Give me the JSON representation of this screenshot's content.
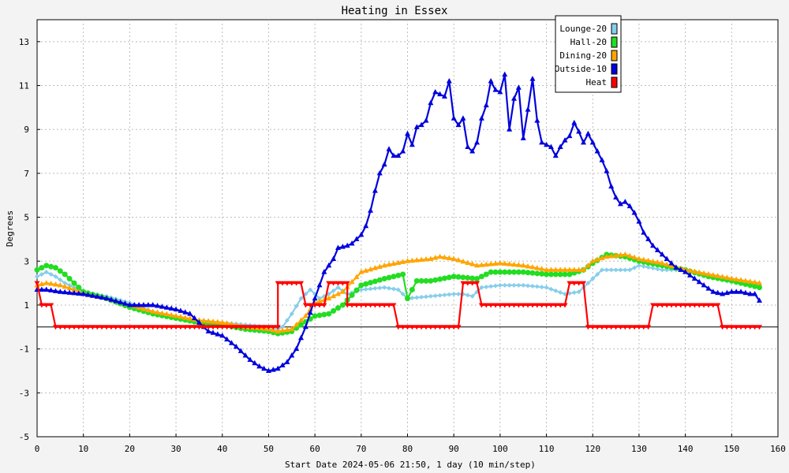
{
  "chart_data": {
    "type": "line",
    "title": "Heating in Essex",
    "xlabel": "Start Date 2024-05-06 21:50, 1 day (10 min/step)",
    "ylabel": "Degrees",
    "xlim": [
      0,
      160
    ],
    "ylim": [
      -5,
      14
    ],
    "xticks": [
      0,
      10,
      20,
      30,
      40,
      50,
      60,
      70,
      80,
      90,
      100,
      110,
      120,
      130,
      140,
      150,
      160
    ],
    "yticks": [
      -5,
      -3,
      -1,
      1,
      3,
      5,
      7,
      9,
      11,
      13
    ],
    "grid": true,
    "legend_position": "top-right",
    "series": [
      {
        "name": "Lounge-20",
        "color": "#87ceeb",
        "marker": "diamond",
        "points": [
          [
            0,
            2.3
          ],
          [
            2,
            2.5
          ],
          [
            4,
            2.3
          ],
          [
            6,
            2.0
          ],
          [
            8,
            1.8
          ],
          [
            10,
            1.6
          ],
          [
            15,
            1.4
          ],
          [
            20,
            1.1
          ],
          [
            25,
            0.7
          ],
          [
            30,
            0.4
          ],
          [
            35,
            0.3
          ],
          [
            40,
            0.2
          ],
          [
            45,
            0.1
          ],
          [
            50,
            0.0
          ],
          [
            52,
            -0.1
          ],
          [
            53,
            0.0
          ],
          [
            55,
            0.6
          ],
          [
            57,
            1.3
          ],
          [
            59,
            1.7
          ],
          [
            61,
            1.3
          ],
          [
            63,
            1.5
          ],
          [
            65,
            1.8
          ],
          [
            67,
            1.5
          ],
          [
            70,
            1.7
          ],
          [
            75,
            1.8
          ],
          [
            78,
            1.7
          ],
          [
            80,
            1.3
          ],
          [
            85,
            1.4
          ],
          [
            90,
            1.5
          ],
          [
            92,
            1.5
          ],
          [
            94,
            1.4
          ],
          [
            96,
            1.8
          ],
          [
            100,
            1.9
          ],
          [
            105,
            1.9
          ],
          [
            110,
            1.8
          ],
          [
            114,
            1.5
          ],
          [
            117,
            1.6
          ],
          [
            120,
            2.2
          ],
          [
            122,
            2.6
          ],
          [
            125,
            2.6
          ],
          [
            128,
            2.6
          ],
          [
            130,
            2.8
          ],
          [
            135,
            2.6
          ],
          [
            140,
            2.6
          ],
          [
            145,
            2.4
          ],
          [
            150,
            2.2
          ],
          [
            156,
            1.9
          ]
        ]
      },
      {
        "name": "Hall-20",
        "color": "#22dd22",
        "marker": "circle",
        "points": [
          [
            0,
            2.6
          ],
          [
            2,
            2.8
          ],
          [
            4,
            2.7
          ],
          [
            6,
            2.4
          ],
          [
            8,
            2.0
          ],
          [
            10,
            1.6
          ],
          [
            15,
            1.3
          ],
          [
            20,
            0.9
          ],
          [
            25,
            0.6
          ],
          [
            30,
            0.4
          ],
          [
            35,
            0.2
          ],
          [
            40,
            0.1
          ],
          [
            45,
            -0.1
          ],
          [
            50,
            -0.2
          ],
          [
            52,
            -0.3
          ],
          [
            55,
            -0.2
          ],
          [
            57,
            0.1
          ],
          [
            60,
            0.5
          ],
          [
            63,
            0.6
          ],
          [
            66,
            1.0
          ],
          [
            70,
            1.9
          ],
          [
            75,
            2.2
          ],
          [
            77,
            2.3
          ],
          [
            79,
            2.4
          ],
          [
            80,
            1.3
          ],
          [
            82,
            2.1
          ],
          [
            85,
            2.1
          ],
          [
            90,
            2.3
          ],
          [
            95,
            2.2
          ],
          [
            98,
            2.5
          ],
          [
            105,
            2.5
          ],
          [
            110,
            2.4
          ],
          [
            115,
            2.4
          ],
          [
            118,
            2.6
          ],
          [
            120,
            2.9
          ],
          [
            123,
            3.3
          ],
          [
            127,
            3.2
          ],
          [
            130,
            3.0
          ],
          [
            135,
            2.8
          ],
          [
            140,
            2.6
          ],
          [
            145,
            2.3
          ],
          [
            150,
            2.1
          ],
          [
            156,
            1.8
          ]
        ]
      },
      {
        "name": "Dining-20",
        "color": "#ffa500",
        "marker": "triangle",
        "points": [
          [
            0,
            1.9
          ],
          [
            2,
            2.0
          ],
          [
            5,
            1.9
          ],
          [
            8,
            1.7
          ],
          [
            10,
            1.5
          ],
          [
            15,
            1.3
          ],
          [
            20,
            1.0
          ],
          [
            25,
            0.7
          ],
          [
            30,
            0.5
          ],
          [
            35,
            0.3
          ],
          [
            40,
            0.2
          ],
          [
            45,
            0.0
          ],
          [
            50,
            -0.1
          ],
          [
            52,
            -0.2
          ],
          [
            55,
            -0.1
          ],
          [
            58,
            0.5
          ],
          [
            60,
            1.1
          ],
          [
            63,
            1.3
          ],
          [
            66,
            1.6
          ],
          [
            70,
            2.5
          ],
          [
            75,
            2.8
          ],
          [
            80,
            3.0
          ],
          [
            85,
            3.1
          ],
          [
            87,
            3.2
          ],
          [
            90,
            3.1
          ],
          [
            95,
            2.8
          ],
          [
            100,
            2.9
          ],
          [
            105,
            2.8
          ],
          [
            110,
            2.6
          ],
          [
            115,
            2.6
          ],
          [
            118,
            2.6
          ],
          [
            120,
            3.0
          ],
          [
            123,
            3.2
          ],
          [
            127,
            3.3
          ],
          [
            130,
            3.1
          ],
          [
            135,
            2.9
          ],
          [
            140,
            2.6
          ],
          [
            145,
            2.4
          ],
          [
            150,
            2.2
          ],
          [
            156,
            2.0
          ]
        ]
      },
      {
        "name": "Outside-10",
        "color": "#0000dd",
        "marker": "triangle",
        "points": [
          [
            0,
            1.7
          ],
          [
            2,
            1.7
          ],
          [
            5,
            1.6
          ],
          [
            10,
            1.5
          ],
          [
            15,
            1.3
          ],
          [
            20,
            1.0
          ],
          [
            25,
            1.0
          ],
          [
            30,
            0.8
          ],
          [
            33,
            0.6
          ],
          [
            35,
            0.2
          ],
          [
            37,
            -0.2
          ],
          [
            40,
            -0.4
          ],
          [
            43,
            -0.9
          ],
          [
            46,
            -1.5
          ],
          [
            48,
            -1.8
          ],
          [
            50,
            -2.0
          ],
          [
            52,
            -1.9
          ],
          [
            54,
            -1.6
          ],
          [
            56,
            -1.0
          ],
          [
            58,
            0.0
          ],
          [
            60,
            1.3
          ],
          [
            62,
            2.5
          ],
          [
            64,
            3.1
          ],
          [
            65,
            3.6
          ],
          [
            67,
            3.7
          ],
          [
            68,
            3.8
          ],
          [
            70,
            4.2
          ],
          [
            71,
            4.6
          ],
          [
            72,
            5.3
          ],
          [
            73,
            6.2
          ],
          [
            74,
            7.0
          ],
          [
            75,
            7.4
          ],
          [
            76,
            8.1
          ],
          [
            77,
            7.8
          ],
          [
            78,
            7.8
          ],
          [
            79,
            8.0
          ],
          [
            80,
            8.8
          ],
          [
            81,
            8.3
          ],
          [
            82,
            9.1
          ],
          [
            83,
            9.2
          ],
          [
            84,
            9.4
          ],
          [
            85,
            10.2
          ],
          [
            86,
            10.7
          ],
          [
            87,
            10.6
          ],
          [
            88,
            10.5
          ],
          [
            89,
            11.2
          ],
          [
            90,
            9.5
          ],
          [
            91,
            9.2
          ],
          [
            92,
            9.5
          ],
          [
            93,
            8.2
          ],
          [
            94,
            8.0
          ],
          [
            95,
            8.4
          ],
          [
            96,
            9.5
          ],
          [
            97,
            10.1
          ],
          [
            98,
            11.2
          ],
          [
            99,
            10.8
          ],
          [
            100,
            10.7
          ],
          [
            101,
            11.5
          ],
          [
            102,
            9.0
          ],
          [
            103,
            10.4
          ],
          [
            104,
            10.9
          ],
          [
            105,
            8.6
          ],
          [
            106,
            9.9
          ],
          [
            107,
            11.3
          ],
          [
            108,
            9.4
          ],
          [
            109,
            8.4
          ],
          [
            110,
            8.3
          ],
          [
            111,
            8.2
          ],
          [
            112,
            7.8
          ],
          [
            113,
            8.2
          ],
          [
            114,
            8.5
          ],
          [
            115,
            8.7
          ],
          [
            116,
            9.3
          ],
          [
            117,
            8.9
          ],
          [
            118,
            8.4
          ],
          [
            119,
            8.8
          ],
          [
            120,
            8.4
          ],
          [
            121,
            8.0
          ],
          [
            122,
            7.6
          ],
          [
            123,
            7.1
          ],
          [
            124,
            6.4
          ],
          [
            125,
            5.9
          ],
          [
            126,
            5.6
          ],
          [
            127,
            5.7
          ],
          [
            128,
            5.5
          ],
          [
            129,
            5.2
          ],
          [
            130,
            4.8
          ],
          [
            131,
            4.3
          ],
          [
            132,
            4.0
          ],
          [
            133,
            3.7
          ],
          [
            134,
            3.5
          ],
          [
            135,
            3.3
          ],
          [
            136,
            3.1
          ],
          [
            137,
            2.9
          ],
          [
            138,
            2.7
          ],
          [
            140,
            2.5
          ],
          [
            142,
            2.2
          ],
          [
            144,
            1.9
          ],
          [
            146,
            1.6
          ],
          [
            148,
            1.5
          ],
          [
            150,
            1.6
          ],
          [
            152,
            1.6
          ],
          [
            154,
            1.5
          ],
          [
            155,
            1.5
          ],
          [
            156,
            1.2
          ]
        ]
      },
      {
        "name": "Heat",
        "color": "#ff0000",
        "marker": "downtriangle",
        "points": [
          [
            0,
            2.0
          ],
          [
            1,
            1.0
          ],
          [
            3,
            1.0
          ],
          [
            4,
            0.0
          ],
          [
            52,
            0.0
          ],
          [
            52,
            2.0
          ],
          [
            57,
            2.0
          ],
          [
            58,
            1.0
          ],
          [
            62,
            1.0
          ],
          [
            63,
            2.0
          ],
          [
            67,
            2.0
          ],
          [
            67,
            1.0
          ],
          [
            77,
            1.0
          ],
          [
            78,
            0.0
          ],
          [
            91,
            0.0
          ],
          [
            92,
            2.0
          ],
          [
            95,
            2.0
          ],
          [
            96,
            1.0
          ],
          [
            114,
            1.0
          ],
          [
            115,
            2.0
          ],
          [
            118,
            2.0
          ],
          [
            119,
            0.0
          ],
          [
            132,
            0.0
          ],
          [
            133,
            1.0
          ],
          [
            147,
            1.0
          ],
          [
            148,
            0.0
          ],
          [
            156,
            0.0
          ]
        ]
      }
    ]
  }
}
